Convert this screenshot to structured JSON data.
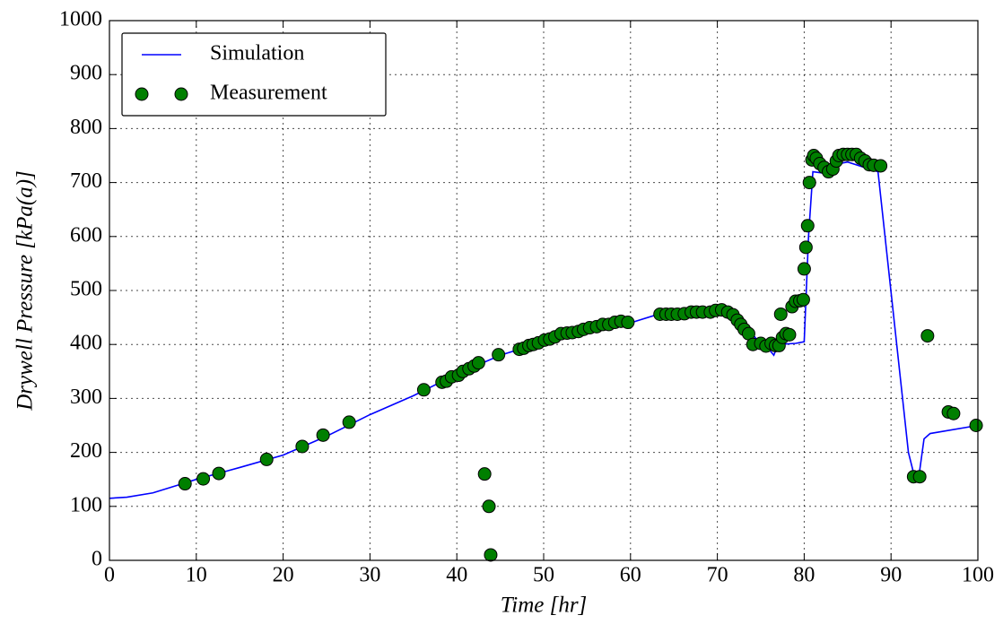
{
  "chart_data": {
    "type": "line",
    "x_label": "Time [hr]",
    "y_label": "Drywell Pressure [kPa(a)]",
    "xlim": [
      0,
      100
    ],
    "ylim": [
      0,
      1000
    ],
    "xticks": [
      0,
      10,
      20,
      30,
      40,
      50,
      60,
      70,
      80,
      90,
      100
    ],
    "yticks": [
      0,
      100,
      200,
      300,
      400,
      500,
      600,
      700,
      800,
      900,
      1000
    ],
    "grid": true,
    "legend": "upper left",
    "series": [
      {
        "name": "Simulation",
        "style": "line",
        "color": "#0000ff",
        "x": [
          0,
          2,
          5,
          8,
          10,
          15,
          20,
          25,
          30,
          35,
          40,
          45,
          50,
          55,
          60,
          63,
          67,
          70,
          72,
          74,
          75,
          76,
          76.5,
          77,
          79,
          80,
          80.5,
          81,
          82,
          83,
          84,
          85,
          88.5,
          92,
          92.7,
          93.2,
          93.8,
          94.5,
          100
        ],
        "values": [
          115,
          117,
          125,
          140,
          150,
          172,
          195,
          230,
          270,
          305,
          345,
          380,
          405,
          425,
          440,
          455,
          460,
          465,
          455,
          420,
          400,
          390,
          380,
          400,
          402,
          405,
          600,
          720,
          718,
          725,
          735,
          738,
          720,
          200,
          155,
          155,
          225,
          235,
          250
        ]
      },
      {
        "name": "Measurement",
        "style": "markers",
        "color": "#007f00",
        "x": [
          8.7,
          10.8,
          12.6,
          18.1,
          22.2,
          24.6,
          27.6,
          36.2,
          38.3,
          38.8,
          39.4,
          40.2,
          40.7,
          41.4,
          42,
          42.5,
          43.2,
          43.7,
          43.9,
          44.8,
          47.2,
          47.7,
          48.3,
          48.8,
          49.4,
          50.1,
          50.7,
          51.3,
          52,
          52.7,
          53.3,
          54,
          54.6,
          55.3,
          56.1,
          56.8,
          57.5,
          58.2,
          58.9,
          59.7,
          63.4,
          64.1,
          64.7,
          65.4,
          66.2,
          67,
          67.6,
          68.3,
          69.2,
          69.8,
          70.5,
          71.2,
          71.8,
          72.3,
          72.7,
          73.1,
          73.6,
          74.1,
          75,
          75.6,
          76.2,
          76.7,
          77.1,
          77.5,
          77.9,
          78.3,
          77.3,
          78.6,
          79,
          79.5,
          79.9,
          80,
          80.2,
          80.4,
          80.6,
          80.9,
          81.1,
          81.4,
          81.8,
          82.3,
          82.8,
          83.3,
          83.7,
          84,
          84.5,
          85,
          85.5,
          86,
          86.5,
          87,
          87.5,
          88,
          88.8,
          92.6,
          93.3,
          94.2,
          96.6,
          97.2,
          99.8
        ],
        "values": [
          142,
          151,
          161,
          187,
          211,
          232,
          256,
          316,
          330,
          332,
          340,
          343,
          350,
          355,
          360,
          366,
          160,
          100,
          10,
          381,
          391,
          393,
          398,
          400,
          403,
          408,
          410,
          414,
          420,
          421,
          422,
          424,
          428,
          431,
          433,
          437,
          437,
          441,
          443,
          441,
          456,
          456,
          456,
          456,
          457,
          460,
          460,
          460,
          460,
          463,
          464,
          460,
          455,
          445,
          437,
          428,
          420,
          400,
          402,
          397,
          402,
          398,
          398,
          413,
          420,
          418,
          456,
          470,
          480,
          481,
          483,
          540,
          580,
          620,
          700,
          742,
          750,
          745,
          735,
          728,
          720,
          725,
          740,
          750,
          752,
          752,
          752,
          752,
          745,
          740,
          733,
          732,
          731,
          155,
          155,
          416,
          275,
          272,
          250
        ]
      }
    ]
  }
}
